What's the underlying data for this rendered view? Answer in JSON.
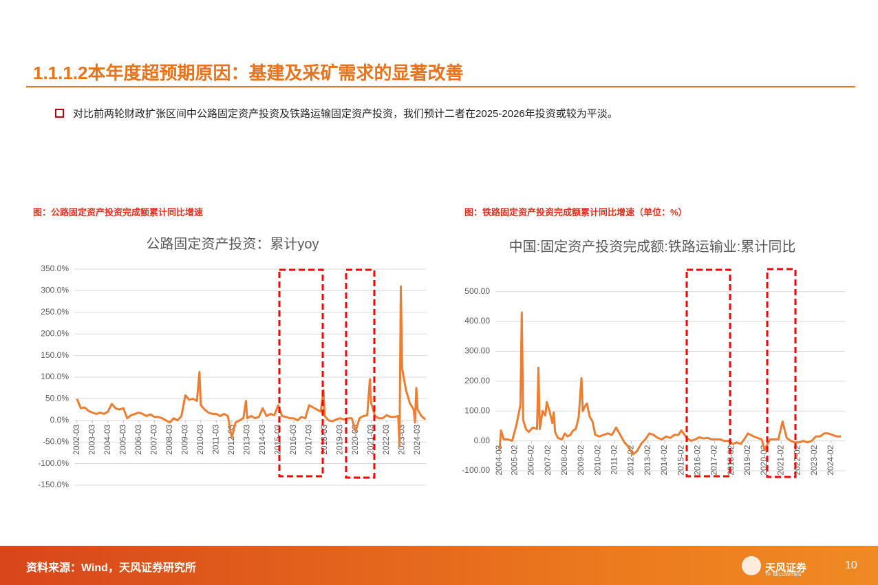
{
  "header": {
    "title": "1.1.1.2本年度超预期原因：基建及采矿需求的显著改善"
  },
  "bullet": "对比前两轮财政扩张区间中公路固定资产投资及铁路运输固定资产投资，我们预计二者在2025-2026年投资或较为平淡。",
  "chart_data": [
    {
      "type": "line",
      "caption": "图：公路固定资产投资完成额累计同比增速",
      "title": "公路固定资产投资：累计yoy",
      "x": [
        "2002-03",
        "2002-06",
        "2002-09",
        "2002-12",
        "2003-03",
        "2003-06",
        "2003-09",
        "2003-12",
        "2004-03",
        "2004-06",
        "2004-09",
        "2004-12",
        "2005-03",
        "2005-06",
        "2005-09",
        "2005-12",
        "2006-03",
        "2006-06",
        "2006-09",
        "2006-12",
        "2007-03",
        "2007-06",
        "2007-09",
        "2007-12",
        "2008-03",
        "2008-06",
        "2008-09",
        "2008-12",
        "2009-03",
        "2009-06",
        "2009-09",
        "2009-12",
        "2010-02",
        "2010-03",
        "2010-06",
        "2010-09",
        "2010-12",
        "2011-03",
        "2011-06",
        "2011-09",
        "2011-12",
        "2012-03",
        "2012-06",
        "2012-09",
        "2012-12",
        "2013-02",
        "2013-03",
        "2013-06",
        "2013-09",
        "2013-12",
        "2014-03",
        "2014-06",
        "2014-09",
        "2014-12",
        "2015-03",
        "2015-06",
        "2015-09",
        "2015-12",
        "2016-03",
        "2016-06",
        "2016-09",
        "2016-12",
        "2017-03",
        "2017-06",
        "2017-09",
        "2017-12",
        "2018-02",
        "2018-03",
        "2018-06",
        "2018-09",
        "2018-12",
        "2019-03",
        "2019-06",
        "2019-09",
        "2019-12",
        "2020-03",
        "2020-06",
        "2020-09",
        "2020-12",
        "2021-02",
        "2021-03",
        "2021-06",
        "2021-09",
        "2021-12",
        "2022-03",
        "2022-06",
        "2022-09",
        "2022-12",
        "2023-01",
        "2023-02",
        "2023-03",
        "2023-06",
        "2023-09",
        "2023-12",
        "2024-01",
        "2024-02",
        "2024-03",
        "2024-06",
        "2024-09"
      ],
      "series": [
        {
          "color": "#ed7d31",
          "values": [
            50,
            28,
            30,
            22,
            18,
            15,
            18,
            15,
            20,
            38,
            28,
            25,
            28,
            5,
            12,
            15,
            18,
            15,
            10,
            14,
            8,
            8,
            5,
            0,
            -5,
            5,
            0,
            10,
            58,
            48,
            50,
            45,
            112,
            35,
            25,
            18,
            15,
            15,
            10,
            15,
            10,
            -40,
            -5,
            0,
            5,
            45,
            5,
            10,
            5,
            8,
            28,
            10,
            15,
            12,
            35,
            10,
            8,
            5,
            5,
            0,
            8,
            5,
            35,
            30,
            25,
            20,
            70,
            10,
            0,
            -2,
            2,
            5,
            2,
            5,
            5,
            -25,
            5,
            10,
            12,
            95,
            40,
            10,
            5,
            5,
            12,
            8,
            8,
            10,
            -60,
            310,
            120,
            70,
            40,
            25,
            -5,
            75,
            25,
            10,
            2
          ]
        }
      ],
      "xlim": [
        "2002-01",
        "2024-10"
      ],
      "xticks": [
        "2002-03",
        "2003-03",
        "2004-03",
        "2005-03",
        "2006-03",
        "2007-03",
        "2008-03",
        "2009-03",
        "2010-03",
        "2011-03",
        "2012-03",
        "2013-03",
        "2014-03",
        "2015-03",
        "2016-03",
        "2017-03",
        "2018-03",
        "2019-03",
        "2020-03",
        "2021-03",
        "2022-03",
        "2023-03",
        "2024-03"
      ],
      "ylim": [
        -150,
        350
      ],
      "yticks": [
        {
          "value": -150,
          "label": "-150.0%"
        },
        {
          "value": -100,
          "label": "-100.0%"
        },
        {
          "value": -50,
          "label": "-50.0%"
        },
        {
          "value": 0,
          "label": "0.0%"
        },
        {
          "value": 50,
          "label": "50.0%"
        },
        {
          "value": 100,
          "label": "100.0%"
        },
        {
          "value": 150,
          "label": "150.0%"
        },
        {
          "value": 200,
          "label": "200.0%"
        },
        {
          "value": 250,
          "label": "250.0%"
        },
        {
          "value": 300,
          "label": "300.0%"
        },
        {
          "value": 350,
          "label": "350.0%"
        }
      ],
      "grid": true
    },
    {
      "type": "line",
      "caption": "图：铁路固定资产投资完成额累计同比增速（单位：%）",
      "title": "中国:固定资产投资完成额:铁路运输业:累计同比",
      "x": [
        "2004-03",
        "2004-04",
        "2004-06",
        "2004-09",
        "2004-12",
        "2005-03",
        "2005-06",
        "2005-07",
        "2005-08",
        "2005-10",
        "2005-12",
        "2006-03",
        "2006-06",
        "2006-07",
        "2006-08",
        "2006-10",
        "2006-12",
        "2007-01",
        "2007-03",
        "2007-05",
        "2007-06",
        "2007-07",
        "2007-09",
        "2007-12",
        "2008-02",
        "2008-04",
        "2008-06",
        "2008-08",
        "2008-10",
        "2008-12",
        "2009-02",
        "2009-03",
        "2009-05",
        "2009-06",
        "2009-08",
        "2009-10",
        "2009-12",
        "2010-03",
        "2010-06",
        "2010-09",
        "2010-12",
        "2011-03",
        "2011-06",
        "2011-09",
        "2011-12",
        "2012-03",
        "2012-06",
        "2012-09",
        "2012-12",
        "2013-03",
        "2013-06",
        "2013-09",
        "2013-12",
        "2014-03",
        "2014-06",
        "2014-09",
        "2014-12",
        "2015-02",
        "2015-06",
        "2015-09",
        "2015-12",
        "2016-03",
        "2016-06",
        "2016-09",
        "2016-12",
        "2017-03",
        "2017-06",
        "2017-09",
        "2017-12",
        "2018-03",
        "2018-06",
        "2018-09",
        "2018-12",
        "2019-02",
        "2019-06",
        "2019-09",
        "2019-12",
        "2020-02",
        "2020-06",
        "2020-09",
        "2020-12",
        "2021-03",
        "2021-06",
        "2021-09",
        "2021-12",
        "2022-03",
        "2022-06",
        "2022-09",
        "2022-12",
        "2023-03",
        "2023-06",
        "2023-09",
        "2023-12",
        "2024-03",
        "2024-06",
        "2024-09"
      ],
      "series": [
        {
          "color": "#ed7d31",
          "values": [
            -30,
            35,
            5,
            5,
            0,
            50,
            120,
            430,
            70,
            40,
            30,
            45,
            40,
            245,
            40,
            100,
            85,
            130,
            100,
            60,
            95,
            30,
            10,
            5,
            25,
            15,
            20,
            35,
            40,
            80,
            210,
            100,
            120,
            125,
            80,
            65,
            20,
            15,
            20,
            25,
            20,
            45,
            20,
            -5,
            -20,
            -45,
            -35,
            -10,
            5,
            25,
            20,
            10,
            5,
            15,
            10,
            20,
            20,
            35,
            10,
            0,
            5,
            12,
            8,
            10,
            5,
            5,
            5,
            0,
            0,
            -10,
            -5,
            -10,
            10,
            25,
            15,
            10,
            5,
            -30,
            5,
            5,
            5,
            65,
            10,
            0,
            -5,
            -5,
            0,
            -5,
            0,
            15,
            15,
            25,
            25,
            20,
            15,
            15
          ]
        }
      ],
      "xlim": [
        "2003-12",
        "2024-12"
      ],
      "xticks": [
        "2004-03",
        "2005-02",
        "2006-02",
        "2007-02",
        "2008-02",
        "2009-02",
        "2010-02",
        "2011-02",
        "2012-02",
        "2013-02",
        "2014-02",
        "2015-02",
        "2016-02",
        "2017-02",
        "2018-02",
        "2019-02",
        "2020-02",
        "2021-02",
        "2022-02",
        "2023-02",
        "2024-02"
      ],
      "ylim": [
        -100,
        550
      ],
      "yticks": [
        {
          "value": -100,
          "label": "-100.00"
        },
        {
          "value": 0,
          "label": "0.00"
        },
        {
          "value": 100,
          "label": "100.00"
        },
        {
          "value": 200,
          "label": "200.00"
        },
        {
          "value": 300,
          "label": "300.00"
        },
        {
          "value": 400,
          "label": "400.00"
        },
        {
          "value": 500,
          "label": "500.00"
        }
      ],
      "grid": true
    }
  ],
  "footer": {
    "source": "资料来源：Wind，天风证券研究所",
    "logo": "天风证券",
    "logo_en": "TF SECURITIES",
    "page": "10"
  }
}
